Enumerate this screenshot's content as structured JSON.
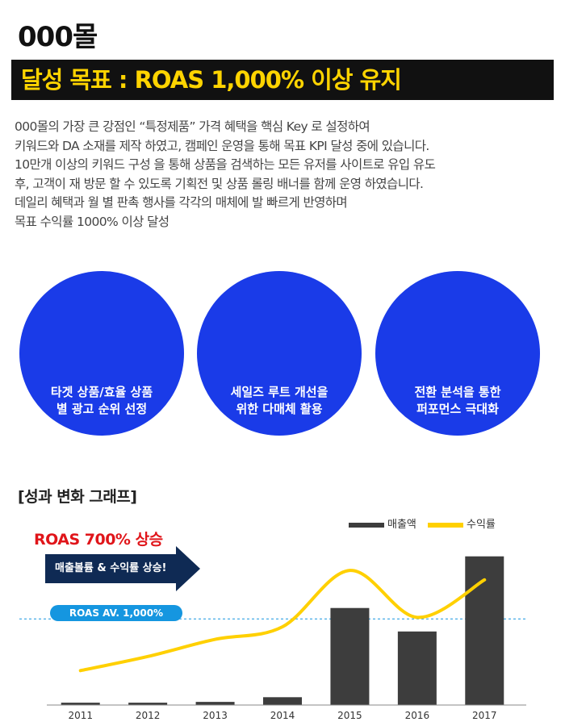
{
  "header": {
    "brand": "000몰",
    "goal_banner": "달성 목표 : ROAS 1,000% 이상 유지"
  },
  "intro": {
    "lines": [
      "000몰의 가장 큰 강점인 “특정제품” 가격 혜택을 핵심 Key 로 설정하여",
      "키워드와 DA 소재를 제작 하였고, 캠페인 운영을 통해 목표 KPI 달성 중에 있습니다.",
      "10만개 이상의 키워드 구성 을 통해 상품을 검색하는 모든 유저를 사이트로 유입 유도",
      "후, 고객이 재 방문 할 수 있도록 기획전 및 상품 롤링 배너를 함께 운영 하였습니다.",
      "데일리 혜택과 월 별 판촉 행사를 각각의 매체에 발 빠르게 반영하며",
      "목표 수익률 1000% 이상 달성"
    ]
  },
  "strategies": [
    {
      "line1": "타겟 상품/효율 상품",
      "line2": "별 광고 순위 선정"
    },
    {
      "line1": "세일즈 루트 개선을",
      "line2": "위한 다매체 활용"
    },
    {
      "line1": "전환 분석을 통한",
      "line2": "퍼포먼스 극대화"
    }
  ],
  "section": {
    "title": "[성과 변화 그래프]"
  },
  "colors": {
    "bar": "#3d3d3d",
    "line": "#ffd000",
    "circle": "#1a3be8",
    "banner_bg": "#111111",
    "banner_text": "#ffd400",
    "roas_title": "#e0151a",
    "arrow": "#0f2a54",
    "avg": "#1596e0"
  },
  "chart_data": {
    "type": "bar+line",
    "categories": [
      "2011",
      "2012",
      "2013",
      "2014",
      "2015",
      "2016",
      "2017"
    ],
    "series": [
      {
        "name": "매출액",
        "type": "bar",
        "values": [
          1.5,
          1.5,
          2,
          5,
          62,
          47,
          95
        ]
      },
      {
        "name": "수익률",
        "type": "line",
        "values": [
          22,
          31,
          42,
          50,
          86,
          56,
          80
        ]
      }
    ],
    "ylim": [
      0,
      100
    ],
    "reference_value": 55,
    "reference_label": "ROAS AV. 1,000%",
    "headline": "ROAS 700% 상승",
    "arrow_label": "매출볼륨 & 수익률 상승!",
    "legend_position": "top-right",
    "grid": false
  }
}
